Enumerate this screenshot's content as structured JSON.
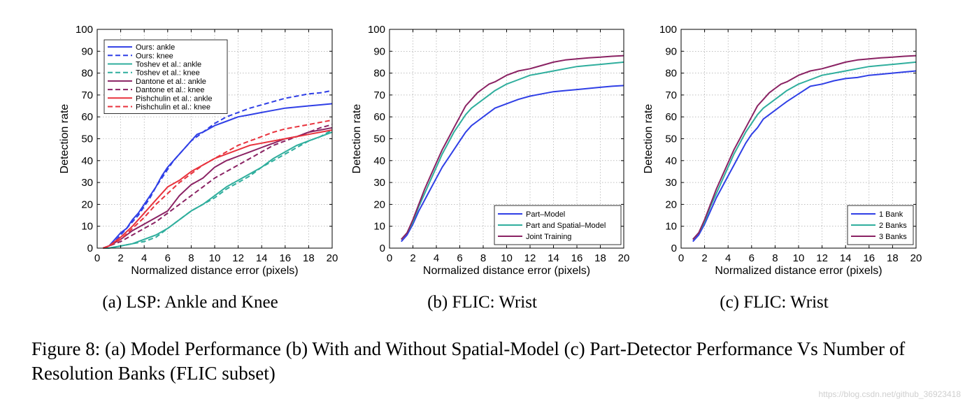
{
  "caption": "Figure 8: (a) Model Performance (b) With and Without Spatial-Model (c) Part-Detector Performance Vs Number of Resolution Banks (FLIC subset)",
  "watermark": "https://blog.csdn.net/github_36923418",
  "chart_data": [
    {
      "type": "line",
      "subtitle": "(a) LSP: Ankle and Knee",
      "xlabel": "Normalized distance error (pixels)",
      "ylabel": "Detection rate",
      "xlim": [
        0,
        20
      ],
      "ylim": [
        0,
        100
      ],
      "xticks": [
        0,
        2,
        4,
        6,
        8,
        10,
        12,
        14,
        16,
        18,
        20
      ],
      "yticks": [
        0,
        10,
        20,
        30,
        40,
        50,
        60,
        70,
        80,
        90,
        100
      ],
      "grid": true,
      "legend_position": "top-left",
      "series": [
        {
          "name": "Ours: ankle",
          "color": "#2f3fe6",
          "dash": "solid",
          "x": [
            0.5,
            1,
            1.5,
            2,
            2.5,
            3,
            3.5,
            4,
            4.5,
            5,
            5.5,
            6,
            6.5,
            7,
            7.5,
            8,
            8.5,
            9,
            10,
            11,
            12,
            13,
            14,
            15,
            16,
            17,
            18,
            19,
            20
          ],
          "y": [
            0,
            1,
            4,
            7,
            9,
            13,
            16,
            20,
            24,
            28,
            33,
            37,
            40,
            43,
            46,
            49,
            52,
            53,
            56,
            58,
            60,
            61,
            62,
            63,
            64,
            64.5,
            65,
            65.5,
            66
          ]
        },
        {
          "name": "Ours: knee",
          "color": "#2f3fe6",
          "dash": "dashed",
          "x": [
            0.5,
            1,
            1.5,
            2,
            2.5,
            3,
            3.5,
            4,
            4.5,
            5,
            5.5,
            6,
            6.5,
            7,
            7.5,
            8,
            8.5,
            9,
            10,
            11,
            12,
            13,
            14,
            15,
            16,
            17,
            18,
            19,
            20
          ],
          "y": [
            0,
            1,
            3,
            6,
            9,
            12,
            15,
            19,
            23,
            28,
            32,
            36,
            40,
            43,
            46,
            49,
            51,
            53,
            57,
            60,
            62,
            64,
            65.5,
            67,
            68.5,
            69.5,
            70.5,
            71,
            72
          ]
        },
        {
          "name": "Toshev et al.: ankle",
          "color": "#2fae9d",
          "dash": "solid",
          "x": [
            0.5,
            1,
            2,
            3,
            4,
            5,
            6,
            7,
            8,
            9,
            10,
            11,
            12,
            13,
            14,
            15,
            16,
            17,
            18,
            19,
            20
          ],
          "y": [
            0,
            0,
            1,
            2,
            4,
            6,
            9,
            13,
            17,
            20,
            24,
            28,
            31,
            34,
            37,
            41,
            44,
            47,
            49,
            51,
            53
          ]
        },
        {
          "name": "Toshev et al.: knee",
          "color": "#2fae9d",
          "dash": "dashed",
          "x": [
            0.5,
            1,
            2,
            3,
            4,
            5,
            6,
            7,
            8,
            9,
            10,
            11,
            12,
            13,
            14,
            15,
            16,
            17,
            18,
            19,
            20
          ],
          "y": [
            0,
            0,
            1,
            2,
            3,
            5,
            9,
            13,
            17,
            20,
            23,
            27,
            30,
            33,
            37,
            40,
            43,
            46,
            49,
            51,
            54
          ]
        },
        {
          "name": "Dantone et al.: ankle",
          "color": "#8a2263",
          "dash": "solid",
          "x": [
            0.5,
            1,
            2,
            3,
            4,
            5,
            6,
            7,
            8,
            9,
            10,
            11,
            12,
            13,
            14,
            15,
            16,
            17,
            18,
            19,
            20
          ],
          "y": [
            0,
            1,
            4,
            8,
            11,
            14,
            17,
            24,
            29,
            32,
            37,
            40,
            42,
            44,
            46,
            48,
            50,
            51,
            53,
            54,
            55
          ]
        },
        {
          "name": "Dantone et al.: knee",
          "color": "#8a2263",
          "dash": "dashed",
          "x": [
            0.5,
            1,
            2,
            3,
            4,
            5,
            6,
            7,
            8,
            9,
            10,
            11,
            12,
            13,
            14,
            15,
            16,
            17,
            18,
            19,
            20
          ],
          "y": [
            0,
            1,
            3,
            6,
            9,
            12,
            16,
            20,
            24,
            28,
            32,
            35,
            38,
            41,
            44,
            47,
            49,
            51,
            53,
            55,
            56.5
          ]
        },
        {
          "name": "Pishchulin et al.: ankle",
          "color": "#e8323c",
          "dash": "solid",
          "x": [
            0.5,
            1,
            2,
            3,
            4,
            5,
            6,
            7,
            8,
            9,
            10,
            11,
            12,
            13,
            14,
            15,
            16,
            17,
            18,
            19,
            20
          ],
          "y": [
            0,
            1,
            5,
            10,
            16,
            22,
            28,
            31,
            35,
            38,
            41,
            43,
            45,
            47,
            48,
            49,
            50,
            51,
            52,
            53,
            54
          ]
        },
        {
          "name": "Pishchulin et al.: knee",
          "color": "#e8323c",
          "dash": "dashed",
          "x": [
            0.5,
            1,
            2,
            3,
            4,
            5,
            6,
            7,
            8,
            9,
            10,
            11,
            12,
            13,
            14,
            15,
            16,
            17,
            18,
            19,
            20
          ],
          "y": [
            0,
            1,
            4,
            9,
            14,
            20,
            25,
            30,
            34,
            38,
            41,
            44,
            47,
            49,
            51,
            53,
            54.5,
            55.5,
            56.5,
            57.5,
            58.5
          ]
        }
      ]
    },
    {
      "type": "line",
      "subtitle": "(b) FLIC: Wrist",
      "xlabel": "Normalized distance error (pixels)",
      "ylabel": "Detection rate",
      "xlim": [
        0,
        20
      ],
      "ylim": [
        0,
        100
      ],
      "xticks": [
        0,
        2,
        4,
        6,
        8,
        10,
        12,
        14,
        16,
        18,
        20
      ],
      "yticks": [
        0,
        10,
        20,
        30,
        40,
        50,
        60,
        70,
        80,
        90,
        100
      ],
      "grid": true,
      "legend_position": "bottom-right",
      "series": [
        {
          "name": "Part–Model",
          "color": "#2f3fe6",
          "dash": "solid",
          "x": [
            1,
            1.5,
            2,
            2.5,
            3,
            3.5,
            4,
            4.5,
            5,
            5.5,
            6,
            6.5,
            7,
            7.5,
            8,
            8.5,
            9,
            10,
            11,
            12,
            13,
            14,
            15,
            16,
            17,
            18,
            19,
            20
          ],
          "y": [
            3,
            6,
            11,
            17,
            22,
            27,
            32,
            37,
            41,
            45,
            49,
            53,
            56,
            58,
            60,
            62,
            64,
            66,
            68,
            69.5,
            70.5,
            71.5,
            72,
            72.5,
            73,
            73.5,
            74,
            74.3
          ]
        },
        {
          "name": "Part and Spatial–Model",
          "color": "#2fae9d",
          "dash": "solid",
          "x": [
            1,
            1.5,
            2,
            2.5,
            3,
            3.5,
            4,
            4.5,
            5,
            5.5,
            6,
            6.5,
            7,
            7.5,
            8,
            8.5,
            9,
            10,
            11,
            12,
            13,
            14,
            15,
            16,
            17,
            18,
            19,
            20
          ],
          "y": [
            4,
            7,
            12,
            19,
            25,
            31,
            37,
            43,
            48,
            53,
            57,
            61,
            64,
            66,
            68,
            70,
            72,
            75,
            77,
            79,
            80,
            81,
            82,
            83,
            83.5,
            84,
            84.5,
            85
          ]
        },
        {
          "name": "Joint Training",
          "color": "#8a2263",
          "dash": "solid",
          "x": [
            1,
            1.5,
            2,
            2.5,
            3,
            3.5,
            4,
            4.5,
            5,
            5.5,
            6,
            6.5,
            7,
            7.5,
            8,
            8.5,
            9,
            10,
            11,
            12,
            13,
            14,
            15,
            16,
            17,
            18,
            19,
            20
          ],
          "y": [
            4,
            7,
            13,
            20,
            27,
            33,
            39,
            45,
            50,
            55,
            60,
            65,
            68,
            71,
            73,
            75,
            76,
            79,
            81,
            82,
            83.5,
            85,
            86,
            86.5,
            87,
            87.3,
            87.7,
            88
          ]
        }
      ]
    },
    {
      "type": "line",
      "subtitle": "(c) FLIC: Wrist",
      "xlabel": "Normalized distance error (pixels)",
      "ylabel": "Detection rate",
      "xlim": [
        0,
        20
      ],
      "ylim": [
        0,
        100
      ],
      "xticks": [
        0,
        2,
        4,
        6,
        8,
        10,
        12,
        14,
        16,
        18,
        20
      ],
      "yticks": [
        0,
        10,
        20,
        30,
        40,
        50,
        60,
        70,
        80,
        90,
        100
      ],
      "grid": true,
      "legend_position": "bottom-right",
      "series": [
        {
          "name": "1 Bank",
          "color": "#2f3fe6",
          "dash": "solid",
          "x": [
            1,
            1.5,
            2,
            2.5,
            3,
            3.5,
            4,
            4.5,
            5,
            5.5,
            6,
            6.5,
            7,
            7.5,
            8,
            8.5,
            9,
            10,
            11,
            12,
            13,
            14,
            15,
            16,
            17,
            18,
            19,
            20
          ],
          "y": [
            3,
            6,
            11,
            17,
            23,
            28,
            33,
            38,
            43,
            48,
            52,
            55,
            59,
            61,
            63,
            65,
            67,
            70.5,
            74,
            75,
            76.5,
            77.5,
            78,
            79,
            79.5,
            80,
            80.5,
            81
          ]
        },
        {
          "name": "2 Banks",
          "color": "#2fae9d",
          "dash": "solid",
          "x": [
            1,
            1.5,
            2,
            2.5,
            3,
            3.5,
            4,
            4.5,
            5,
            5.5,
            6,
            6.5,
            7,
            7.5,
            8,
            8.5,
            9,
            10,
            11,
            12,
            13,
            14,
            15,
            16,
            17,
            18,
            19,
            20
          ],
          "y": [
            4,
            7,
            12,
            19,
            25,
            31,
            37,
            43,
            48,
            53,
            57,
            61,
            64,
            66,
            68,
            70,
            72,
            75,
            77,
            79,
            80,
            81,
            82,
            83,
            83.5,
            84,
            84.5,
            85
          ]
        },
        {
          "name": "3 Banks",
          "color": "#8a2263",
          "dash": "solid",
          "x": [
            1,
            1.5,
            2,
            2.5,
            3,
            3.5,
            4,
            4.5,
            5,
            5.5,
            6,
            6.5,
            7,
            7.5,
            8,
            8.5,
            9,
            10,
            11,
            12,
            13,
            14,
            15,
            16,
            17,
            18,
            19,
            20
          ],
          "y": [
            4,
            7,
            13,
            20,
            27,
            33,
            39,
            45,
            50,
            55,
            60,
            65,
            68,
            71,
            73,
            75,
            76,
            79,
            81,
            82,
            83.5,
            85,
            86,
            86.5,
            87,
            87.3,
            87.7,
            88
          ]
        }
      ]
    }
  ]
}
